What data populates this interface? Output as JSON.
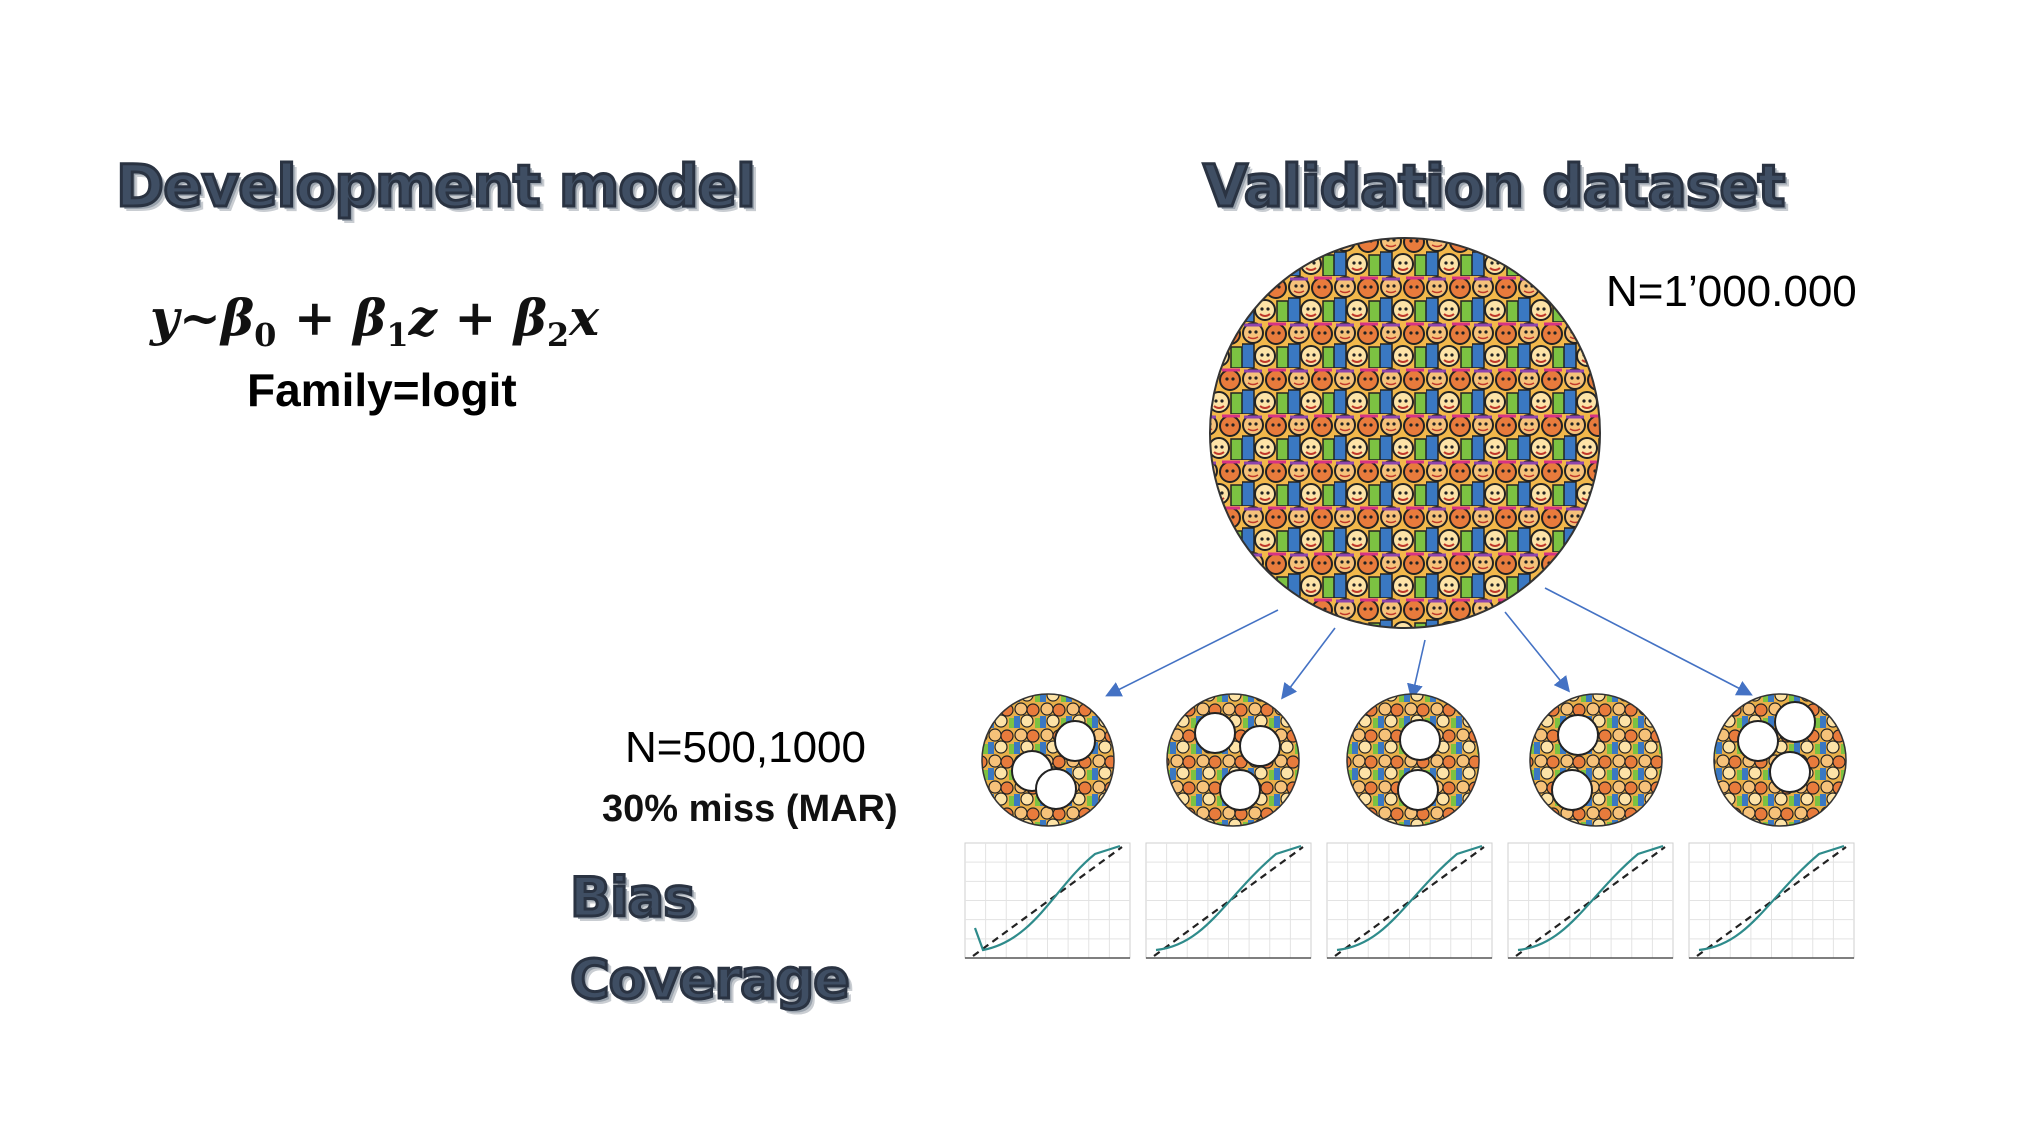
{
  "titles": {
    "development": "Development model",
    "validation": "Validation dataset"
  },
  "model": {
    "formula_parts": [
      "y~β",
      "0",
      " + β",
      "1",
      "z + β",
      "2",
      "x"
    ],
    "family": "Family=logit"
  },
  "validation": {
    "population_size": "N=1’000.000",
    "sample_sizes": "N=500,1000",
    "missingness": "30% miss (MAR)"
  },
  "metrics": {
    "bias": "Bias",
    "coverage": "Coverage"
  },
  "colors": {
    "title_fill": "#3f4e63",
    "arrow": "#4472c4",
    "curve": "#2e8b8b",
    "reference_line": "#222222"
  },
  "icons": [
    "crowd-circle-image",
    "missing-data-hole",
    "calibration-plot"
  ]
}
